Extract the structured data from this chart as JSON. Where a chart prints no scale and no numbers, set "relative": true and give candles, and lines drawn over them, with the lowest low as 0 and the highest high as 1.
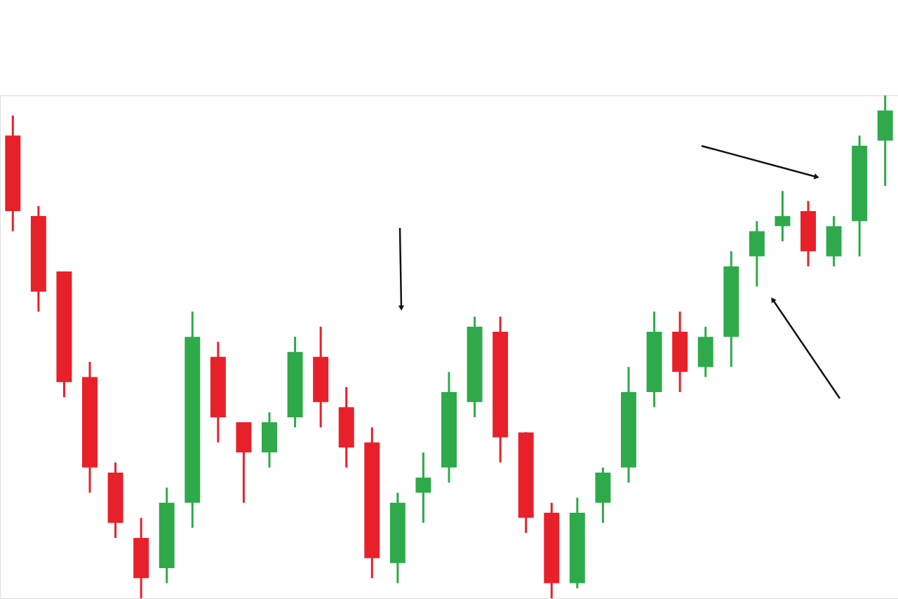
{
  "chart_data": {
    "type": "candlestick",
    "relative": true,
    "categories": [
      null,
      null,
      null,
      null,
      null,
      null,
      null,
      null,
      null,
      null,
      null,
      null,
      null,
      null,
      null,
      null,
      null,
      null,
      null,
      null,
      null,
      null,
      null,
      null,
      null,
      null,
      null,
      null,
      null,
      null,
      null,
      null,
      null,
      null,
      null
    ],
    "ohlc": [
      [
        0.92,
        0.96,
        0.73,
        0.77
      ],
      [
        0.76,
        0.78,
        0.57,
        0.61
      ],
      [
        0.65,
        0.65,
        0.4,
        0.43
      ],
      [
        0.44,
        0.47,
        0.21,
        0.26
      ],
      [
        0.25,
        0.27,
        0.12,
        0.15
      ],
      [
        0.12,
        0.16,
        0.0,
        0.04
      ],
      [
        0.06,
        0.22,
        0.03,
        0.19
      ],
      [
        0.19,
        0.57,
        0.14,
        0.52
      ],
      [
        0.48,
        0.51,
        0.31,
        0.36
      ],
      [
        0.35,
        0.35,
        0.19,
        0.29
      ],
      [
        0.29,
        0.37,
        0.26,
        0.35
      ],
      [
        0.36,
        0.52,
        0.34,
        0.49
      ],
      [
        0.48,
        0.54,
        0.34,
        0.39
      ],
      [
        0.38,
        0.42,
        0.26,
        0.3
      ],
      [
        0.31,
        0.34,
        0.04,
        0.08
      ],
      [
        0.07,
        0.21,
        0.03,
        0.19
      ],
      [
        0.21,
        0.29,
        0.15,
        0.24
      ],
      [
        0.26,
        0.45,
        0.23,
        0.41
      ],
      [
        0.39,
        0.56,
        0.36,
        0.54
      ],
      [
        0.53,
        0.56,
        0.27,
        0.32
      ],
      [
        0.33,
        0.33,
        0.13,
        0.16
      ],
      [
        0.17,
        0.19,
        0.0,
        0.03
      ],
      [
        0.03,
        0.2,
        0.02,
        0.17
      ],
      [
        0.19,
        0.26,
        0.15,
        0.25
      ],
      [
        0.26,
        0.46,
        0.23,
        0.41
      ],
      [
        0.41,
        0.57,
        0.38,
        0.53
      ],
      [
        0.53,
        0.57,
        0.41,
        0.45
      ],
      [
        0.46,
        0.54,
        0.44,
        0.52
      ],
      [
        0.52,
        0.69,
        0.46,
        0.66
      ],
      [
        0.68,
        0.75,
        0.62,
        0.73
      ],
      [
        0.74,
        0.81,
        0.71,
        0.76
      ],
      [
        0.77,
        0.79,
        0.66,
        0.69
      ],
      [
        0.68,
        0.76,
        0.66,
        0.74
      ],
      [
        0.75,
        0.92,
        0.68,
        0.9
      ],
      [
        0.91,
        1.0,
        0.82,
        0.97
      ]
    ],
    "colors": [
      "#e8202a",
      "#e8202a",
      "#e8202a",
      "#e8202a",
      "#e8202a",
      "#e8202a",
      "#2eaa4a",
      "#2eaa4a",
      "#e8202a",
      "#e8202a",
      "#2eaa4a",
      "#2eaa4a",
      "#e8202a",
      "#e8202a",
      "#e8202a",
      "#2eaa4a",
      "#2eaa4a",
      "#2eaa4a",
      "#2eaa4a",
      "#e8202a",
      "#e8202a",
      "#e8202a",
      "#2eaa4a",
      "#2eaa4a",
      "#2eaa4a",
      "#2eaa4a",
      "#e8202a",
      "#2eaa4a",
      "#2eaa4a",
      "#2eaa4a",
      "#2eaa4a",
      "#e8202a",
      "#2eaa4a",
      "#2eaa4a",
      "#2eaa4a"
    ]
  }
}
